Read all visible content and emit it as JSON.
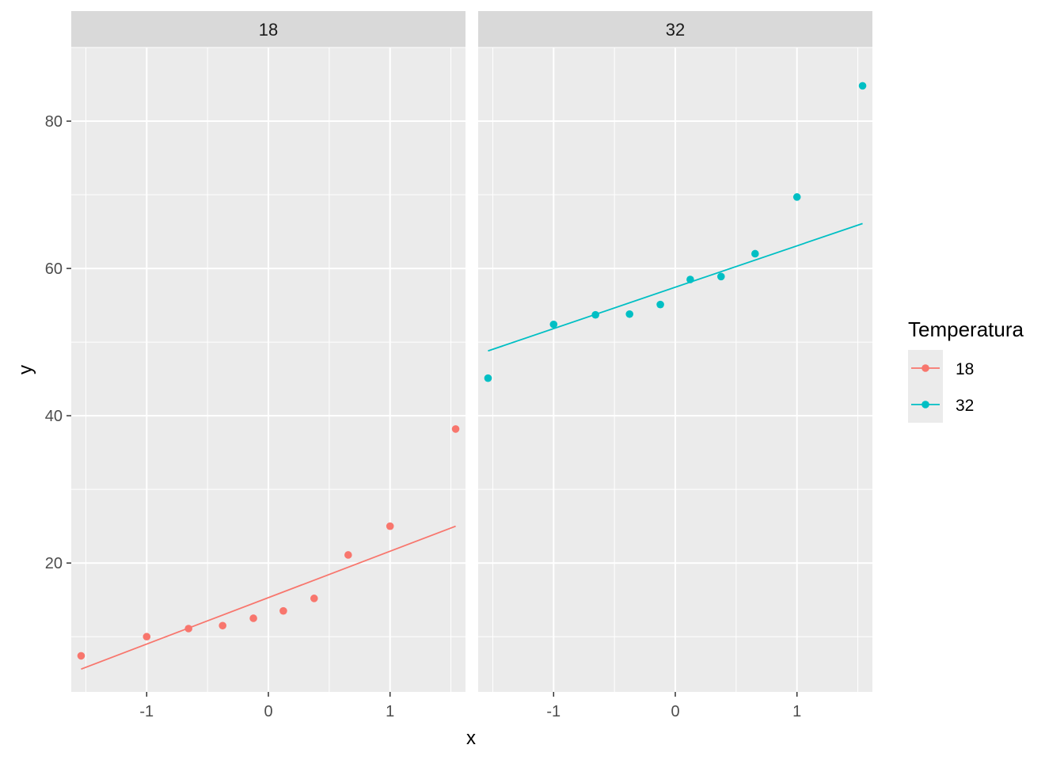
{
  "chart_data": {
    "type": "scatter",
    "xlabel": "x",
    "ylabel": "y",
    "xlim": [
      -1.62,
      1.62
    ],
    "ylim": [
      2.5,
      90
    ],
    "x_ticks": [
      -1,
      0,
      1
    ],
    "x_tick_labels": [
      "-1",
      "0",
      "1"
    ],
    "y_ticks": [
      20,
      40,
      60,
      80
    ],
    "y_tick_labels": [
      "20",
      "40",
      "60",
      "80"
    ],
    "grid": true,
    "facet_by": "Temperatura",
    "legend": {
      "title": "Temperatura",
      "position": "right",
      "entries": [
        {
          "label": "18",
          "color": "#F8766D"
        },
        {
          "label": "32",
          "color": "#00BFC4"
        }
      ]
    },
    "panels": [
      {
        "strip": "18",
        "color": "#F8766D",
        "points": [
          {
            "x": -1.539,
            "y": 7.4
          },
          {
            "x": -1.0,
            "y": 10.0
          },
          {
            "x": -0.656,
            "y": 11.1
          },
          {
            "x": -0.376,
            "y": 11.5
          },
          {
            "x": -0.123,
            "y": 12.5
          },
          {
            "x": 0.123,
            "y": 13.5
          },
          {
            "x": 0.376,
            "y": 15.2
          },
          {
            "x": 0.656,
            "y": 21.1
          },
          {
            "x": 1.0,
            "y": 25.0
          },
          {
            "x": 1.539,
            "y": 38.2
          }
        ],
        "fit_line": {
          "x": [
            -1.539,
            1.539
          ],
          "y": [
            5.6,
            25.0
          ]
        }
      },
      {
        "strip": "32",
        "color": "#00BFC4",
        "points": [
          {
            "x": -1.539,
            "y": 45.1
          },
          {
            "x": -1.0,
            "y": 52.4
          },
          {
            "x": -0.656,
            "y": 53.7
          },
          {
            "x": -0.376,
            "y": 53.8
          },
          {
            "x": -0.123,
            "y": 55.1
          },
          {
            "x": 0.123,
            "y": 58.5
          },
          {
            "x": 0.376,
            "y": 58.9
          },
          {
            "x": 0.656,
            "y": 62.0
          },
          {
            "x": 1.0,
            "y": 69.7
          },
          {
            "x": 1.539,
            "y": 84.8
          }
        ],
        "fit_line": {
          "x": [
            -1.539,
            1.539
          ],
          "y": [
            48.8,
            66.1
          ]
        }
      }
    ]
  }
}
